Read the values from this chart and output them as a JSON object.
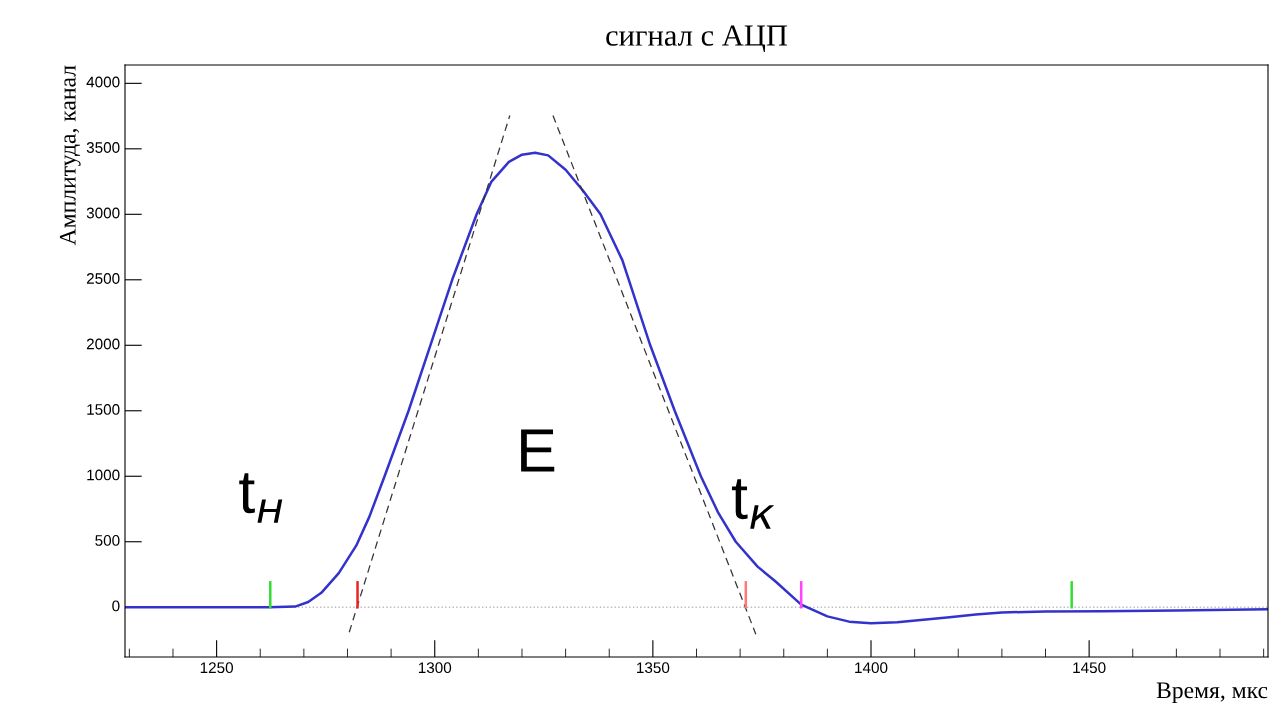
{
  "chart_data": {
    "type": "line",
    "title": "сигнал с АЦП",
    "xlabel": "Время, мкс",
    "ylabel": "Амплитуда, канал",
    "xlim": [
      1229,
      1491
    ],
    "xticks": [
      1250,
      1300,
      1350,
      1400,
      1450
    ],
    "ylim": [
      -380,
      4140
    ],
    "yticks": [
      0,
      500,
      1000,
      1500,
      2000,
      2500,
      3000,
      3500,
      4000
    ],
    "grid": false,
    "marker": "none",
    "series": [
      {
        "color": "#3333cc",
        "line_style": "solid",
        "x": [
          1229,
          1250,
          1262,
          1268,
          1271,
          1274,
          1278,
          1282,
          1285,
          1288.5,
          1294,
          1299,
          1304,
          1309.6,
          1313,
          1317,
          1320,
          1323,
          1326,
          1330,
          1334,
          1338,
          1343,
          1349.4,
          1355,
          1361,
          1365,
          1369,
          1374,
          1378,
          1384,
          1390,
          1395,
          1400,
          1406,
          1412,
          1418,
          1424,
          1430,
          1440,
          1453,
          1470,
          1491
        ],
        "values": [
          0,
          0,
          0,
          5,
          40,
          110,
          260,
          470,
          690,
          1000,
          1500,
          2000,
          2500,
          3000,
          3250,
          3400,
          3455,
          3470,
          3450,
          3340,
          3180,
          3000,
          2650,
          2000,
          1500,
          1000,
          720,
          500,
          310,
          200,
          20,
          -70,
          -110,
          -122,
          -115,
          -95,
          -76,
          -55,
          -40,
          -32,
          -30,
          -25,
          -15
        ]
      },
      {
        "color": "#333333",
        "line_style": "dashed",
        "x": [
          1280.4,
          1317.2
        ],
        "values": [
          -191,
          3754
        ]
      },
      {
        "color": "#333333",
        "line_style": "dashed",
        "x": [
          1327.1,
          1373.6
        ],
        "values": [
          3754,
          -206
        ]
      },
      {
        "color": "#33dd33",
        "line_style": "solid",
        "x": [
          1262.3,
          1262.3
        ],
        "values": [
          0,
          190
        ]
      },
      {
        "color": "#ee2222",
        "line_style": "solid",
        "x": [
          1282.3,
          1282.3
        ],
        "values": [
          0,
          190
        ]
      },
      {
        "color": "#ff7777",
        "line_style": "solid",
        "x": [
          1371.3,
          1371.3
        ],
        "values": [
          0,
          190
        ]
      },
      {
        "color": "#ff44ff",
        "line_style": "solid",
        "x": [
          1384,
          1384
        ],
        "values": [
          0,
          190
        ]
      },
      {
        "color": "#33dd33",
        "line_style": "solid",
        "x": [
          1446,
          1446
        ],
        "values": [
          0,
          190
        ]
      }
    ],
    "ref_lines": [
      {
        "axis": "y",
        "value": 0,
        "color": "#bbbbbb",
        "line_style": "dotted"
      }
    ],
    "annotations": [
      "t$_{н}$",
      "E",
      "t$_{к}$"
    ]
  }
}
